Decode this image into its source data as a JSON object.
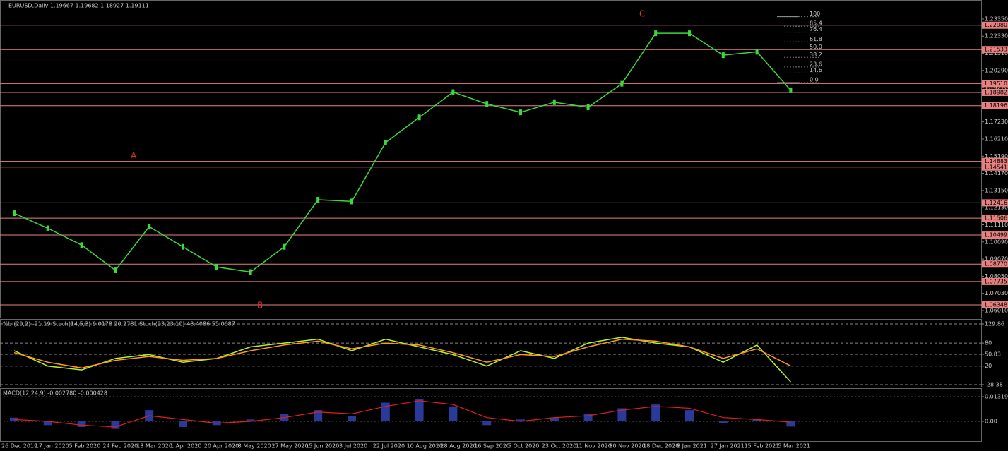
{
  "chart_data": [
    {
      "type": "line",
      "title": "EURUSD,Daily  1.19667 1.19682 1.18927 1.19111",
      "categories": [
        "26 Dec 2019",
        "17 Jan 2020",
        "5 Feb 2020",
        "24 Feb 2020",
        "13 Mar 2020",
        "1 Apr 2020",
        "20 Apr 2020",
        "8 May 2020",
        "27 May 2020",
        "15 Jun 2020",
        "3 Jul 2020",
        "22 Jul 2020",
        "10 Aug 2020",
        "28 Aug 2020",
        "16 Sep 2020",
        "5 Oct 2020",
        "23 Oct 2020",
        "11 Nov 2020",
        "30 Nov 2020",
        "18 Dec 2020",
        "8 Jan 2021",
        "27 Jan 2021",
        "15 Feb 2021",
        "5 Mar 2021"
      ],
      "series": [
        {
          "color": "#3cd83c",
          "values": [
            1.118,
            1.109,
            1.099,
            1.084,
            1.11,
            1.098,
            1.086,
            1.083,
            1.098,
            1.126,
            1.125,
            1.16,
            1.175,
            1.19,
            1.183,
            1.178,
            1.184,
            1.181,
            1.195,
            1.225,
            1.225,
            1.212,
            1.214,
            1.19111
          ]
        }
      ],
      "ylim": [
        1.0559,
        1.2427
      ],
      "yticks": [
        {
          "value": 1.2335,
          "label": "1.23350"
        },
        {
          "value": 1.2233,
          "label": "1.22330"
        },
        {
          "value": 1.2131,
          "label": "1.21310"
        },
        {
          "value": 1.2029,
          "label": "1.20290"
        },
        {
          "value": 1.1927,
          "label": "1.19270"
        },
        {
          "value": 1.1825,
          "label": "1.18250"
        },
        {
          "value": 1.1723,
          "label": "1.17230"
        },
        {
          "value": 1.1621,
          "label": "1.16210"
        },
        {
          "value": 1.1519,
          "label": "1.15190"
        },
        {
          "value": 1.1417,
          "label": "1.14170"
        },
        {
          "value": 1.1315,
          "label": "1.13150"
        },
        {
          "value": 1.1213,
          "label": "1.12130"
        },
        {
          "value": 1.1111,
          "label": "1.11110"
        },
        {
          "value": 1.1009,
          "label": "1.10090"
        },
        {
          "value": 1.0907,
          "label": "1.09070"
        },
        {
          "value": 1.0805,
          "label": "1.08050"
        },
        {
          "value": 1.0703,
          "label": "1.07030"
        },
        {
          "value": 1.0601,
          "label": "1.06010"
        }
      ],
      "levels": [
        {
          "value": 1.2298,
          "label": "1.22980"
        },
        {
          "value": 1.21533,
          "label": "1.21533"
        },
        {
          "value": 1.1951,
          "label": "1.19510"
        },
        {
          "value": 1.18982,
          "label": "1.18982"
        },
        {
          "value": 1.18196,
          "label": "1.18196"
        },
        {
          "value": 1.14883,
          "label": "1.14883"
        },
        {
          "value": 1.14541,
          "label": "1.14541"
        },
        {
          "value": 1.12416,
          "label": "1.12416"
        },
        {
          "value": 1.11506,
          "label": "1.11506"
        },
        {
          "value": 1.10499,
          "label": "1.10499"
        },
        {
          "value": 1.0877,
          "label": "1.08770"
        },
        {
          "value": 1.07735,
          "label": "1.07735"
        },
        {
          "value": 1.06348,
          "label": "1.06348"
        }
      ],
      "level_color": "#e88080",
      "fib_range": [
        1.1957,
        1.2349
      ],
      "fib": [
        100,
        85.4,
        76.4,
        61.8,
        {
          "value": 50,
          "label": "50.0"
        },
        38.2,
        23.6,
        14.6,
        {
          "value": 0,
          "label": "0.0"
        }
      ],
      "annotations": [
        "A",
        "B",
        "C"
      ]
    },
    {
      "type": "line",
      "title": "%b (20,2) -21.19  Stoch(14,5,3) 9.0178 20.2781  Stoch(23,23,10) 43.4086 55.0687",
      "series": [
        {
          "color": "#b8f020",
          "values": [
            60,
            20,
            10,
            40,
            50,
            30,
            40,
            70,
            80,
            90,
            60,
            90,
            70,
            50,
            20,
            60,
            40,
            80,
            95,
            80,
            70,
            30,
            75,
            -21.19
          ]
        },
        {
          "color": "#ff9a1a",
          "values": [
            55,
            30,
            15,
            35,
            45,
            35,
            40,
            60,
            75,
            85,
            65,
            80,
            75,
            55,
            30,
            50,
            45,
            70,
            90,
            85,
            70,
            40,
            65,
            20.2781
          ]
        }
      ],
      "ylim": [
        -33.9,
        140.9
      ],
      "yticks": [
        129.86,
        80,
        50.83,
        20,
        -28.38
      ]
    },
    {
      "type": "bar",
      "title": "MACD(12,24,9) -0.002780 -0.000428",
      "values": [
        0.002,
        -0.002,
        -0.003,
        -0.004,
        0.006,
        -0.003,
        -0.002,
        0.001,
        0.004,
        0.006,
        0.003,
        0.01,
        0.012,
        0.008,
        -0.002,
        0.001,
        0.002,
        0.004,
        0.007,
        0.009,
        0.006,
        -0.001,
        0.001,
        -0.00278
      ],
      "color": "#2a3a9a",
      "signal": {
        "color": "#e02020",
        "values": [
          0.001,
          0.0,
          -0.002,
          -0.003,
          0.003,
          0.001,
          -0.001,
          0.0,
          0.002,
          0.005,
          0.004,
          0.008,
          0.011,
          0.009,
          0.002,
          0.0,
          0.002,
          0.003,
          0.006,
          0.008,
          0.007,
          0.002,
          0.001,
          -0.000428
        ]
      },
      "ylim": [
        -0.01056,
        0.01735
      ],
      "yticks": [
        0.013199,
        {
          "value": 0,
          "label": "0.00"
        }
      ]
    }
  ]
}
